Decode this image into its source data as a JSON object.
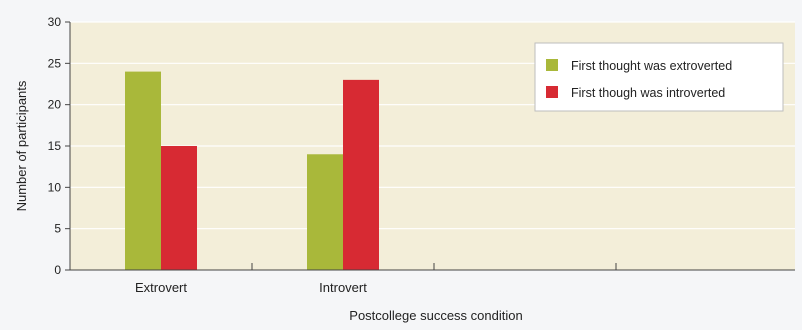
{
  "chart_data": {
    "type": "bar",
    "title": "",
    "xlabel": "Postcollege success condition",
    "ylabel": "Number of participants",
    "categories": [
      "Extrovert",
      "Introvert"
    ],
    "series": [
      {
        "name": "First thought was extroverted",
        "values": [
          24,
          14
        ]
      },
      {
        "name": "First though was introverted",
        "values": [
          15,
          23
        ]
      }
    ],
    "ylim": [
      0,
      30
    ],
    "yticks": [
      0,
      5,
      10,
      15,
      20,
      25,
      30
    ],
    "grid": true,
    "legend_position": "top-right"
  },
  "colors": {
    "plot_background": "#f3eed9",
    "gridline": "#ffffff",
    "axis": "#444444",
    "series": [
      "#a9b83a",
      "#d72a33"
    ]
  }
}
